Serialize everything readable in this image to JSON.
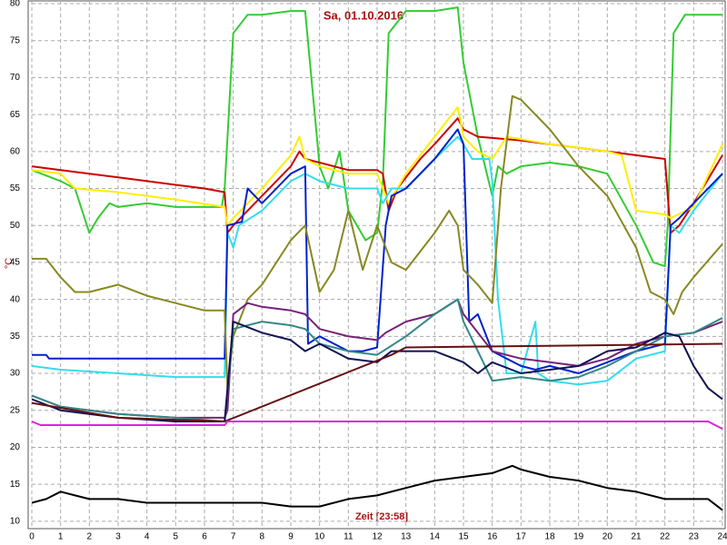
{
  "chart_data": {
    "type": "line",
    "title": "Sa, 01.10.2016",
    "x_label": "Zeit [23:58]",
    "y_label": "°C",
    "xlim": [
      0,
      24
    ],
    "ylim": [
      9,
      80
    ],
    "xticks": [
      0,
      1,
      2,
      3,
      4,
      5,
      6,
      7,
      8,
      9,
      10,
      11,
      12,
      13,
      14,
      15,
      16,
      17,
      18,
      19,
      20,
      21,
      22,
      23,
      24
    ],
    "yticks": [
      10,
      15,
      20,
      25,
      30,
      35,
      40,
      45,
      50,
      55,
      60,
      65,
      70,
      75,
      80
    ],
    "grid": true,
    "series": [
      {
        "color": "#33cc33",
        "x": [
          0,
          1,
          1.5,
          2,
          2.3,
          2.7,
          3,
          4,
          5,
          6.6,
          6.7,
          7,
          7.5,
          8,
          9,
          9.5,
          10,
          10.3,
          10.7,
          11,
          11.6,
          12,
          12.2,
          12.4,
          13,
          14,
          14.8,
          15,
          15.5,
          16,
          16.2,
          16.5,
          17,
          18,
          19,
          20,
          21,
          21.6,
          22,
          22.1,
          22.3,
          22.7,
          24
        ],
        "values": [
          57.5,
          56,
          55,
          49,
          51,
          53,
          52.5,
          53,
          52.5,
          52.5,
          55,
          76,
          78.5,
          78.5,
          79,
          79,
          58,
          55,
          60,
          52,
          48,
          49,
          56,
          76,
          79,
          79,
          79.5,
          72,
          62,
          54,
          58,
          57,
          58,
          58.5,
          58,
          57,
          50,
          45,
          44.5,
          50,
          76,
          78.5,
          78.5
        ]
      },
      {
        "color": "#cc0000",
        "x": [
          0,
          1,
          2,
          3,
          4,
          5,
          6,
          6.7,
          6.8,
          7,
          8,
          9,
          9.3,
          9.5,
          10,
          11,
          12,
          12.2,
          12.4,
          12.7,
          13.5,
          14,
          14.8,
          15,
          15.5,
          17,
          18,
          19,
          20,
          21,
          22,
          22.2,
          22.5,
          23,
          24
        ],
        "values": [
          58,
          57.5,
          57,
          56.5,
          56,
          55.5,
          55,
          54.5,
          49,
          50,
          54,
          58,
          60,
          59,
          58.5,
          57.5,
          57.5,
          57,
          52,
          55,
          59,
          61,
          64.5,
          63,
          62,
          61.5,
          61,
          60.5,
          60,
          59.5,
          59,
          49,
          50,
          53,
          59.5
        ]
      },
      {
        "color": "#ffee00",
        "x": [
          0,
          1,
          1.5,
          3,
          5,
          6.7,
          6.8,
          7,
          8,
          9,
          9.3,
          9.5,
          10,
          11,
          12,
          12.4,
          13,
          14,
          14.8,
          15,
          15.5,
          16,
          16.5,
          18,
          20,
          20.5,
          21,
          22,
          22.2,
          23,
          24
        ],
        "values": [
          57.5,
          57,
          55,
          54.5,
          53.5,
          52.5,
          50,
          51,
          55,
          59.5,
          62,
          59,
          58,
          57,
          57,
          53,
          57,
          62,
          66,
          62,
          60,
          59,
          62,
          61,
          60,
          59.5,
          52,
          51.5,
          51,
          52.5,
          61
        ]
      },
      {
        "color": "#33ddee",
        "x": [
          0,
          1,
          3,
          5,
          6.7,
          6.8,
          7,
          7.2,
          8,
          9,
          9.5,
          10,
          11,
          12,
          12.2,
          12.5,
          13,
          14,
          14.8,
          15,
          15.3,
          15.9,
          16,
          16.2,
          16.5,
          17,
          17.5,
          17.6,
          18,
          19,
          20,
          21,
          22,
          22.2,
          22.5,
          23,
          24
        ],
        "values": [
          31,
          30.5,
          30,
          29.5,
          29.5,
          49,
          47,
          50,
          52,
          56,
          57,
          56,
          55,
          55,
          53,
          55,
          55,
          59,
          62,
          61,
          59,
          59,
          56,
          40,
          30,
          30,
          37,
          30,
          29,
          28.5,
          29,
          32,
          33,
          50,
          49,
          52,
          57
        ]
      },
      {
        "color": "#0022cc",
        "x": [
          0,
          0.5,
          0.6,
          6.7,
          6.8,
          7.3,
          7.5,
          8,
          9,
          9.5,
          9.6,
          10,
          11,
          11.5,
          12,
          12.3,
          12.5,
          13,
          14,
          14.8,
          15,
          15.2,
          15.5,
          16,
          16.5,
          17,
          17.5,
          18,
          19,
          20,
          21,
          22,
          22.2,
          22.5,
          23,
          24
        ],
        "values": [
          32.5,
          32.5,
          32,
          32,
          50,
          50.5,
          55,
          53,
          57,
          58,
          34,
          35,
          33,
          33,
          33.5,
          50,
          54,
          55,
          59,
          63,
          61,
          37,
          38,
          33,
          32,
          31,
          30.5,
          31,
          30,
          31.5,
          33,
          34,
          50,
          51,
          53,
          57
        ]
      },
      {
        "color": "#888822",
        "x": [
          0,
          0.5,
          1,
          1.5,
          2,
          3,
          4,
          5,
          6,
          6.7,
          6.8,
          7,
          7.5,
          8,
          9,
          9.5,
          10,
          10.5,
          11,
          11.5,
          12,
          12.5,
          13,
          14,
          14.5,
          14.8,
          15,
          15.5,
          16,
          16.3,
          16.7,
          17,
          18,
          19,
          20,
          21,
          21.5,
          22,
          22.3,
          22.6,
          23,
          24
        ],
        "values": [
          45.5,
          45.5,
          43,
          41,
          41,
          42,
          40.5,
          39.5,
          38.5,
          38.5,
          28,
          35,
          40,
          42,
          48,
          50,
          41,
          44,
          52,
          44,
          50,
          45,
          44,
          49,
          52,
          50,
          44,
          42,
          39.5,
          55,
          67.5,
          67,
          63,
          58,
          54,
          47,
          41,
          40,
          38,
          41,
          43,
          47.5
        ]
      },
      {
        "color": "#772277",
        "x": [
          0,
          1,
          3,
          5,
          6.7,
          6.8,
          7,
          7.5,
          8,
          9,
          9.5,
          10,
          11,
          12,
          12.3,
          13,
          14,
          14.8,
          15,
          16,
          17,
          18,
          19,
          20,
          21,
          22,
          23,
          24
        ],
        "values": [
          27,
          25.5,
          24.5,
          24,
          24,
          25,
          38,
          39.5,
          39,
          38.5,
          38,
          36,
          35,
          34.5,
          35.5,
          37,
          38,
          40,
          38,
          33,
          32,
          31.5,
          31,
          32,
          34,
          35,
          35.5,
          37
        ]
      },
      {
        "color": "#338888",
        "x": [
          0,
          1,
          3,
          5,
          6.7,
          7,
          8,
          9,
          9.5,
          10,
          11,
          12,
          13,
          14,
          14.8,
          15,
          15.5,
          16,
          17,
          18,
          19,
          20,
          21,
          22,
          23,
          24
        ],
        "values": [
          27,
          25.5,
          24.5,
          24,
          23.5,
          36,
          37,
          36.5,
          36,
          34,
          33,
          32.5,
          35,
          38,
          40,
          37,
          33,
          29,
          29.5,
          29,
          29.5,
          31,
          33,
          35,
          35.5,
          37.5
        ]
      },
      {
        "color": "#111155",
        "x": [
          0,
          1,
          3,
          5,
          6.7,
          7,
          8,
          9,
          9.5,
          10,
          11,
          12,
          12.5,
          13,
          14,
          15,
          15.5,
          16,
          17,
          18,
          19,
          20,
          21,
          22,
          22.5,
          23,
          23.5,
          24
        ],
        "values": [
          26.5,
          25,
          24,
          23.5,
          23.5,
          37,
          35.5,
          34.5,
          33,
          34,
          32,
          31.5,
          33,
          33,
          33,
          31.5,
          30,
          31.5,
          30,
          30.5,
          31,
          33,
          33.5,
          35.5,
          35,
          31,
          28,
          26.5
        ]
      },
      {
        "color": "#661111",
        "x": [
          0,
          3,
          6.7,
          12.5,
          13,
          24
        ],
        "values": [
          26,
          24,
          23.5,
          32.5,
          33.5,
          34
        ]
      },
      {
        "color": "#dd22dd",
        "x": [
          0,
          0.3,
          6.7,
          6.8,
          23.5,
          24
        ],
        "values": [
          23.5,
          23,
          23,
          23.5,
          23.5,
          22.5
        ]
      },
      {
        "color": "#000000",
        "x": [
          0,
          0.5,
          1,
          1.5,
          2,
          3,
          4,
          5,
          6,
          7,
          8,
          9,
          10,
          11,
          12,
          13,
          14,
          15,
          16,
          16.7,
          17,
          18,
          19,
          20,
          21,
          22,
          23,
          23.5,
          24
        ],
        "values": [
          12.5,
          13,
          14,
          13.5,
          13,
          13,
          12.5,
          12.5,
          12.5,
          12.5,
          12.5,
          12,
          12,
          13,
          13.5,
          14.5,
          15.5,
          16,
          16.5,
          17.5,
          17,
          16,
          15.5,
          14.5,
          14,
          13,
          13,
          13,
          11.5
        ]
      }
    ]
  }
}
